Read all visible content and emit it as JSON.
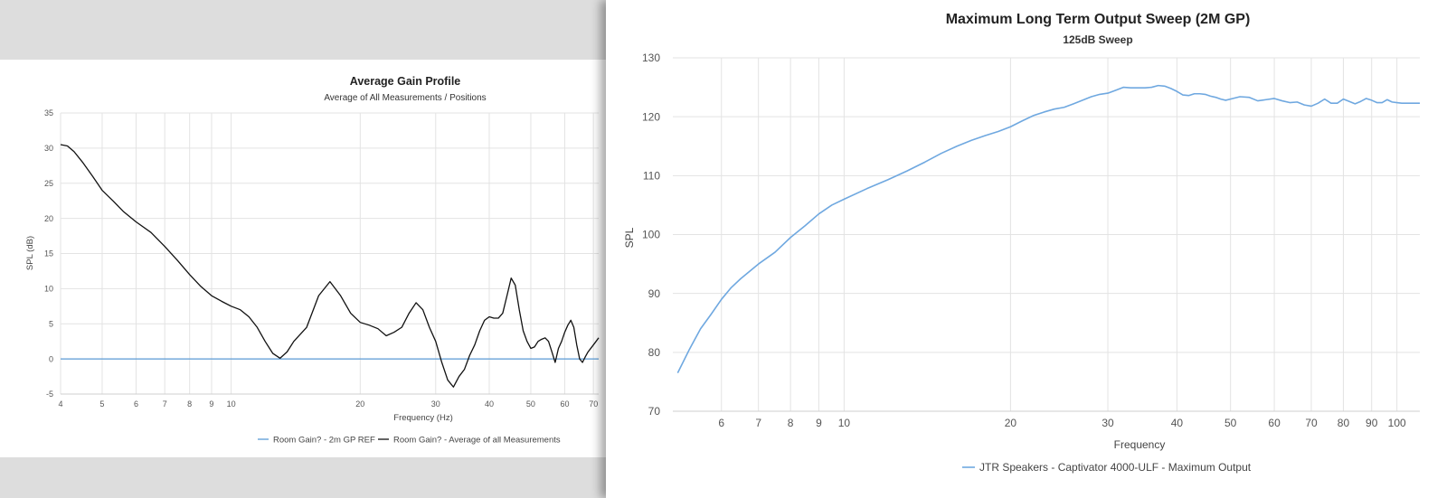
{
  "charts": [
    {
      "id": "gain",
      "title": "Average Gain Profile",
      "subtitle": "Average of All Measurements / Positions",
      "xlabel": "Frequency (Hz)",
      "ylabel": "SPL (dB)"
    },
    {
      "id": "sweep",
      "title": "Maximum Long Term Output Sweep (2M GP)",
      "subtitle": "125dB Sweep",
      "xlabel": "Frequency",
      "ylabel": "SPL"
    }
  ],
  "chart_data": [
    {
      "type": "line",
      "title": "Average Gain Profile",
      "subtitle": "Average of All Measurements / Positions",
      "xlabel": "Frequency (Hz)",
      "ylabel": "SPL (dB)",
      "xscale": "log",
      "xlim": [
        4,
        72
      ],
      "ylim": [
        -5,
        35
      ],
      "xticks": [
        4,
        5,
        6,
        7,
        8,
        9,
        10,
        20,
        30,
        40,
        50,
        60,
        70
      ],
      "yticks": [
        -5,
        0,
        5,
        10,
        15,
        20,
        25,
        30,
        35
      ],
      "grid": true,
      "legend_position": "bottom",
      "series": [
        {
          "name": "Room Gain? - 2m GP REF",
          "color": "#5b9bd5",
          "x": [
            4,
            72
          ],
          "y": [
            0,
            0
          ]
        },
        {
          "name": "Room Gain? - Average of all Measurements",
          "color": "#111111",
          "x": [
            4,
            4.15,
            4.3,
            4.5,
            4.75,
            5,
            5.3,
            5.6,
            6,
            6.5,
            7,
            7.5,
            8,
            8.5,
            9,
            9.5,
            10,
            10.5,
            11,
            11.5,
            12,
            12.5,
            13,
            13.5,
            14,
            15,
            16,
            17,
            18,
            19,
            20,
            21,
            22,
            23,
            24,
            25,
            26,
            27,
            28,
            29,
            30,
            31,
            32,
            33,
            34,
            35,
            36,
            37,
            38,
            39,
            40,
            41,
            42,
            43,
            44,
            45,
            46,
            47,
            48,
            49,
            50,
            51,
            52,
            53,
            54,
            55,
            56,
            57,
            58,
            59,
            60,
            61,
            62,
            63,
            64,
            65,
            66,
            67,
            68,
            69,
            70,
            71,
            72
          ],
          "y": [
            30.5,
            30.3,
            29.5,
            28,
            26,
            24,
            22.5,
            21,
            19.5,
            18,
            16,
            14,
            12,
            10.3,
            9,
            8.2,
            7.5,
            7,
            6,
            4.5,
            2.5,
            0.8,
            0.1,
            1,
            2.5,
            4.5,
            9,
            11,
            9,
            6.5,
            5.2,
            4.8,
            4.3,
            3.3,
            3.8,
            4.5,
            6.5,
            8,
            7,
            4.5,
            2.5,
            -0.5,
            -3,
            -4,
            -2.5,
            -1.5,
            0.5,
            2,
            4,
            5.5,
            6,
            5.8,
            5.8,
            6.5,
            9,
            11.5,
            10.5,
            7,
            4,
            2.5,
            1.5,
            1.7,
            2.5,
            2.8,
            3,
            2.5,
            1,
            -0.5,
            1.5,
            2.5,
            3.8,
            4.8,
            5.5,
            4.5,
            2,
            0,
            -0.5,
            0.3,
            1,
            1.5,
            2,
            2.5,
            3
          ]
        }
      ]
    },
    {
      "type": "line",
      "title": "Maximum Long Term Output Sweep (2M GP)",
      "subtitle": "125dB Sweep",
      "xlabel": "Frequency",
      "ylabel": "SPL",
      "xscale": "log",
      "xlim": [
        4.9,
        110
      ],
      "ylim": [
        70,
        130
      ],
      "xticks": [
        6,
        7,
        8,
        9,
        10,
        20,
        30,
        40,
        50,
        60,
        70,
        80,
        90,
        100
      ],
      "yticks": [
        70,
        80,
        90,
        100,
        110,
        120,
        130
      ],
      "grid": true,
      "legend_position": "bottom",
      "series": [
        {
          "name": "JTR Speakers - Captivator 4000-ULF - Maximum Output",
          "color": "#6fa8e0",
          "x": [
            5,
            5.25,
            5.5,
            5.75,
            6,
            6.25,
            6.5,
            7,
            7.5,
            8,
            8.5,
            9,
            9.5,
            10,
            11,
            12,
            13,
            14,
            15,
            16,
            17,
            18,
            19,
            20,
            21,
            22,
            23,
            24,
            25,
            26,
            27,
            28,
            29,
            30,
            31,
            32,
            33,
            34,
            35,
            36,
            37,
            38,
            39,
            40,
            41,
            42,
            43,
            44,
            45,
            46,
            47,
            48,
            49,
            50,
            52,
            54,
            56,
            58,
            60,
            62,
            64,
            66,
            68,
            70,
            72,
            74,
            76,
            78,
            80,
            82,
            84,
            86,
            88,
            90,
            92,
            94,
            96,
            98,
            100,
            102,
            104,
            106,
            108,
            110
          ],
          "y": [
            76.5,
            80.5,
            84,
            86.5,
            89,
            91,
            92.5,
            95,
            97,
            99.5,
            101.5,
            103.5,
            105,
            106,
            107.8,
            109.3,
            110.8,
            112.3,
            113.8,
            115,
            116,
            116.8,
            117.5,
            118.3,
            119.3,
            120.2,
            120.8,
            121.3,
            121.6,
            122.2,
            122.8,
            123.4,
            123.8,
            124,
            124.5,
            125,
            124.9,
            124.9,
            124.9,
            125,
            125.3,
            125.2,
            124.8,
            124.3,
            123.7,
            123.6,
            123.9,
            123.9,
            123.8,
            123.5,
            123.3,
            123,
            122.8,
            123,
            123.4,
            123.3,
            122.7,
            122.9,
            123.1,
            122.7,
            122.4,
            122.5,
            122,
            121.8,
            122.3,
            123,
            122.3,
            122.3,
            123,
            122.6,
            122.2,
            122.6,
            123.1,
            122.8,
            122.4,
            122.4,
            122.9,
            122.5,
            122.4,
            122.3,
            122.3,
            122.3,
            122.3,
            122.3
          ]
        }
      ]
    }
  ]
}
